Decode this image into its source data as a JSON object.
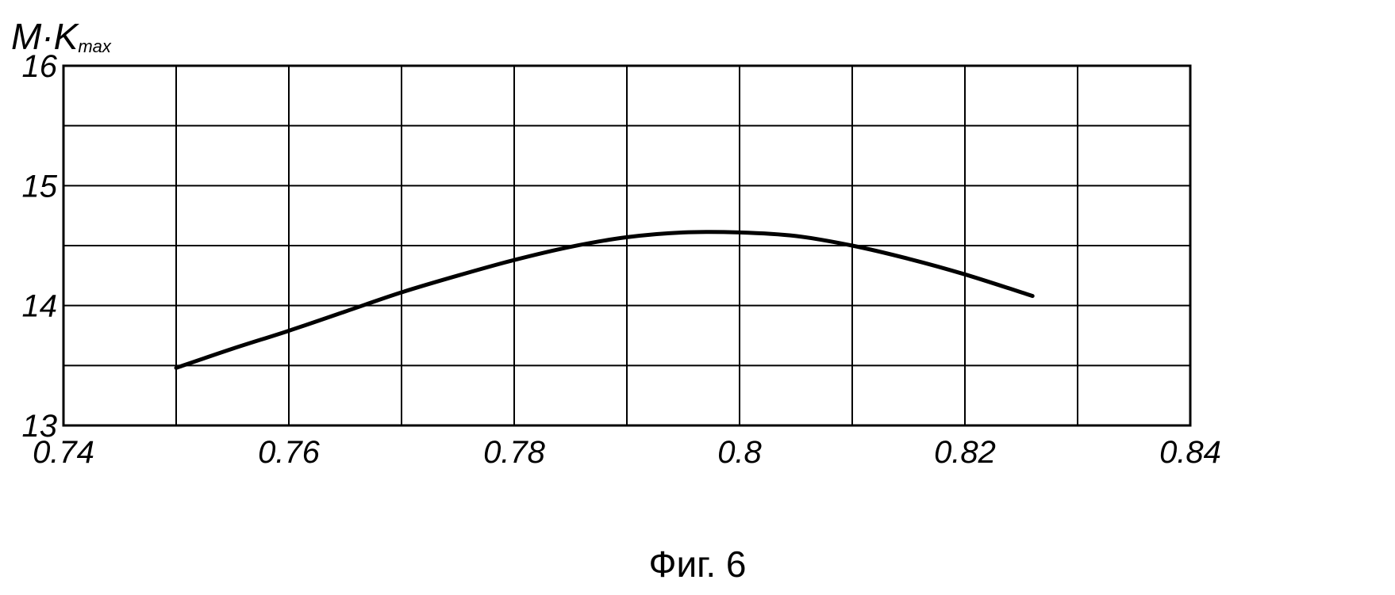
{
  "caption": "Фиг. 6",
  "chart_data": {
    "type": "line",
    "title": "",
    "xlabel": "",
    "ylabel": "M·K",
    "ylabel_subscript": "max",
    "xlim": [
      0.74,
      0.84
    ],
    "ylim": [
      13,
      16
    ],
    "x_ticks": [
      0.74,
      0.76,
      0.78,
      0.8,
      0.82,
      0.84
    ],
    "x_tick_labels": [
      "0.74",
      "0.76",
      "0.78",
      "0.8",
      "0.82",
      "0.84"
    ],
    "y_ticks": [
      13,
      14,
      15,
      16
    ],
    "y_tick_labels": [
      "13",
      "14",
      "15",
      "16"
    ],
    "x_grid": [
      0.75,
      0.76,
      0.77,
      0.78,
      0.79,
      0.8,
      0.81,
      0.82,
      0.83
    ],
    "y_grid": [
      13.5,
      14,
      14.5,
      15,
      15.5
    ],
    "grid": true,
    "legend": "none",
    "series": [
      {
        "color": "#000000",
        "x": [
          0.75,
          0.755,
          0.76,
          0.765,
          0.77,
          0.775,
          0.78,
          0.785,
          0.79,
          0.795,
          0.8,
          0.805,
          0.81,
          0.815,
          0.82,
          0.826
        ],
        "y": [
          13.48,
          13.64,
          13.79,
          13.95,
          14.11,
          14.25,
          14.38,
          14.49,
          14.57,
          14.61,
          14.61,
          14.58,
          14.5,
          14.39,
          14.26,
          14.08
        ]
      }
    ]
  }
}
